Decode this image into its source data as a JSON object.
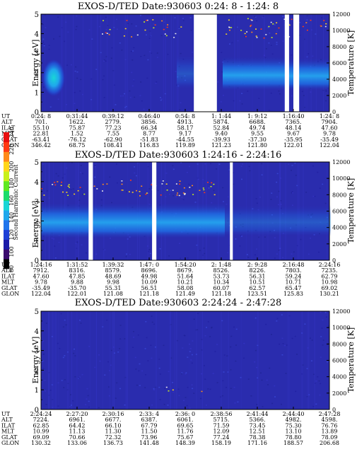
{
  "colorbar": {
    "label": "Second Harmonic Current",
    "ticks": [
      "240",
      "220",
      "200",
      "180",
      "160",
      "140",
      "120",
      "100",
      "80"
    ],
    "colors": [
      "#000000",
      "#3b0a6e",
      "#1a1aa8",
      "#1d3fd6",
      "#1f74ec",
      "#1fa8ec",
      "#19d6d6",
      "#1adc6a",
      "#5fe81e",
      "#c8f01a",
      "#ffd61a",
      "#ff8a1a",
      "#ff3a14",
      "#e81010"
    ]
  },
  "chart_data": [
    {
      "type": "heatmap",
      "title": "EXOS-D/TED   Date:930603   0:24: 8 - 1:24: 8",
      "ylabel": "Energy [eV]",
      "y2label": "Temperature [K]",
      "ylim": [
        0,
        5
      ],
      "y2lim": [
        0,
        12000
      ],
      "yticks": [
        "0",
        "1",
        "2",
        "3",
        "4",
        "5"
      ],
      "y2ticks": [
        "0",
        "2000",
        "4000",
        "6000",
        "8000",
        "10000",
        "12000"
      ],
      "gaps": [
        [
          0.53,
          0.61
        ],
        [
          0.845,
          0.86
        ],
        [
          0.875,
          0.895
        ]
      ],
      "table": {
        "labels": [
          "UT",
          "ALT",
          "ILAT",
          "MLT",
          "GLAT",
          "GLON"
        ],
        "columns": [
          [
            "0:24: 8",
            "701.",
            "55.10",
            "22.81",
            "-63.41",
            "346.42"
          ],
          [
            "0:31:44",
            "1622.",
            "75.87",
            "1.52",
            "-76.12",
            "68.75"
          ],
          [
            "0:39:12",
            "2779.",
            "77.23",
            "7.55",
            "-62.90",
            "108.41"
          ],
          [
            "0:46:40",
            "3856.",
            "66.34",
            "8.77",
            "-51.83",
            "116.83"
          ],
          [
            "0:54: 8",
            "4913.",
            "58.17",
            "9.17",
            "-44.55",
            "119.89"
          ],
          [
            "1: 1:44",
            "5874.",
            "52.84",
            "9.40",
            "-39.93",
            "121.23"
          ],
          [
            "1: 9:12",
            "6688.",
            "49.74",
            "9.55",
            "-37.30",
            "121.80"
          ],
          [
            "1:16:40",
            "7365.",
            "48.14",
            "9.67",
            "-35.95",
            "122.01"
          ],
          [
            "1:24: 8",
            "7904.",
            "47.60",
            "9.78",
            "-35.49",
            "122.04"
          ]
        ]
      }
    },
    {
      "type": "heatmap",
      "title": "EXOS-D/TED   Date:930603   1:24:16 - 2:24:16",
      "ylabel": "Energy [eV]",
      "y2label": "Temperature [K]",
      "ylim": [
        0,
        5
      ],
      "y2lim": [
        0,
        12000
      ],
      "yticks": [
        "0",
        "1",
        "2",
        "3",
        "4",
        "5"
      ],
      "y2ticks": [
        "0",
        "2000",
        "4000",
        "6000",
        "8000",
        "10000",
        "12000"
      ],
      "gaps": [
        [
          0.165,
          0.18
        ],
        [
          0.385,
          0.4
        ],
        [
          0.655,
          0.665
        ]
      ],
      "table": {
        "labels": [
          "UT",
          "ALT",
          "ILAT",
          "MLT",
          "GLAT",
          "GLON"
        ],
        "columns": [
          [
            "1:24:16",
            "7912.",
            "47.60",
            "9.78",
            "-35.49",
            "122.04"
          ],
          [
            "1:31:52",
            "8316.",
            "47.85",
            "9.88",
            "-35.70",
            "122.01"
          ],
          [
            "1:39:32",
            "8579.",
            "48.69",
            "9.98",
            "55.31",
            "121.08"
          ],
          [
            "1:47: 0",
            "8696.",
            "49.98",
            "10.09",
            "56.51",
            "121.18"
          ],
          [
            "1:54:20",
            "8679.",
            "51.64",
            "10.21",
            "58.08",
            "121.49"
          ],
          [
            "2: 1:48",
            "8526.",
            "53.73",
            "10.34",
            "60.07",
            "121.18"
          ],
          [
            "2: 9:28",
            "8226.",
            "56.31",
            "10.51",
            "62.57",
            "123.51"
          ],
          [
            "2:16:48",
            "7803.",
            "59.24",
            "10.71",
            "65.47",
            "125.83"
          ],
          [
            "2:24:16",
            "7235.",
            "62.79",
            "10.98",
            "69.02",
            "130.21"
          ]
        ]
      }
    },
    {
      "type": "heatmap",
      "title": "EXOS-D/TED   Date:930603   2:24:24 - 2:47:28",
      "ylabel": "Energy [eV]",
      "y2label": "Temperature [K]",
      "ylim": [
        0,
        5
      ],
      "y2lim": [
        0,
        12000
      ],
      "yticks": [
        "0",
        "1",
        "2",
        "3",
        "4",
        "5"
      ],
      "y2ticks": [
        "0",
        "2000",
        "4000",
        "6000",
        "8000",
        "10000",
        "12000"
      ],
      "gaps": [],
      "table": {
        "labels": [
          "UT",
          "ALT",
          "ILAT",
          "MLT",
          "GLAT",
          "GLON"
        ],
        "columns": [
          [
            "2:24:24",
            "7224.",
            "62.85",
            "10.99",
            "69.09",
            "130.32"
          ],
          [
            "2:27:20",
            "6961.",
            "64.42",
            "11.13",
            "70.66",
            "133.06"
          ],
          [
            "2:30:16",
            "6677.",
            "66.10",
            "11.30",
            "72.32",
            "136.73"
          ],
          [
            "2:33: 4",
            "6387.",
            "67.79",
            "11.50",
            "73.96",
            "141.48"
          ],
          [
            "2:36: 0",
            "6061.",
            "69.65",
            "11.76",
            "75.67",
            "148.39"
          ],
          [
            "2:38:56",
            "5715.",
            "71.59",
            "12.09",
            "77.24",
            "158.19"
          ],
          [
            "2:41:44",
            "5366.",
            "73.45",
            "12.51",
            "78.38",
            "171.16"
          ],
          [
            "2:44:40",
            "4982.",
            "75.30",
            "13.10",
            "78.80",
            "188.57"
          ],
          [
            "2:47:28",
            "4598.",
            "76.76",
            "13.89",
            "78.09",
            "206.68"
          ]
        ]
      }
    }
  ]
}
